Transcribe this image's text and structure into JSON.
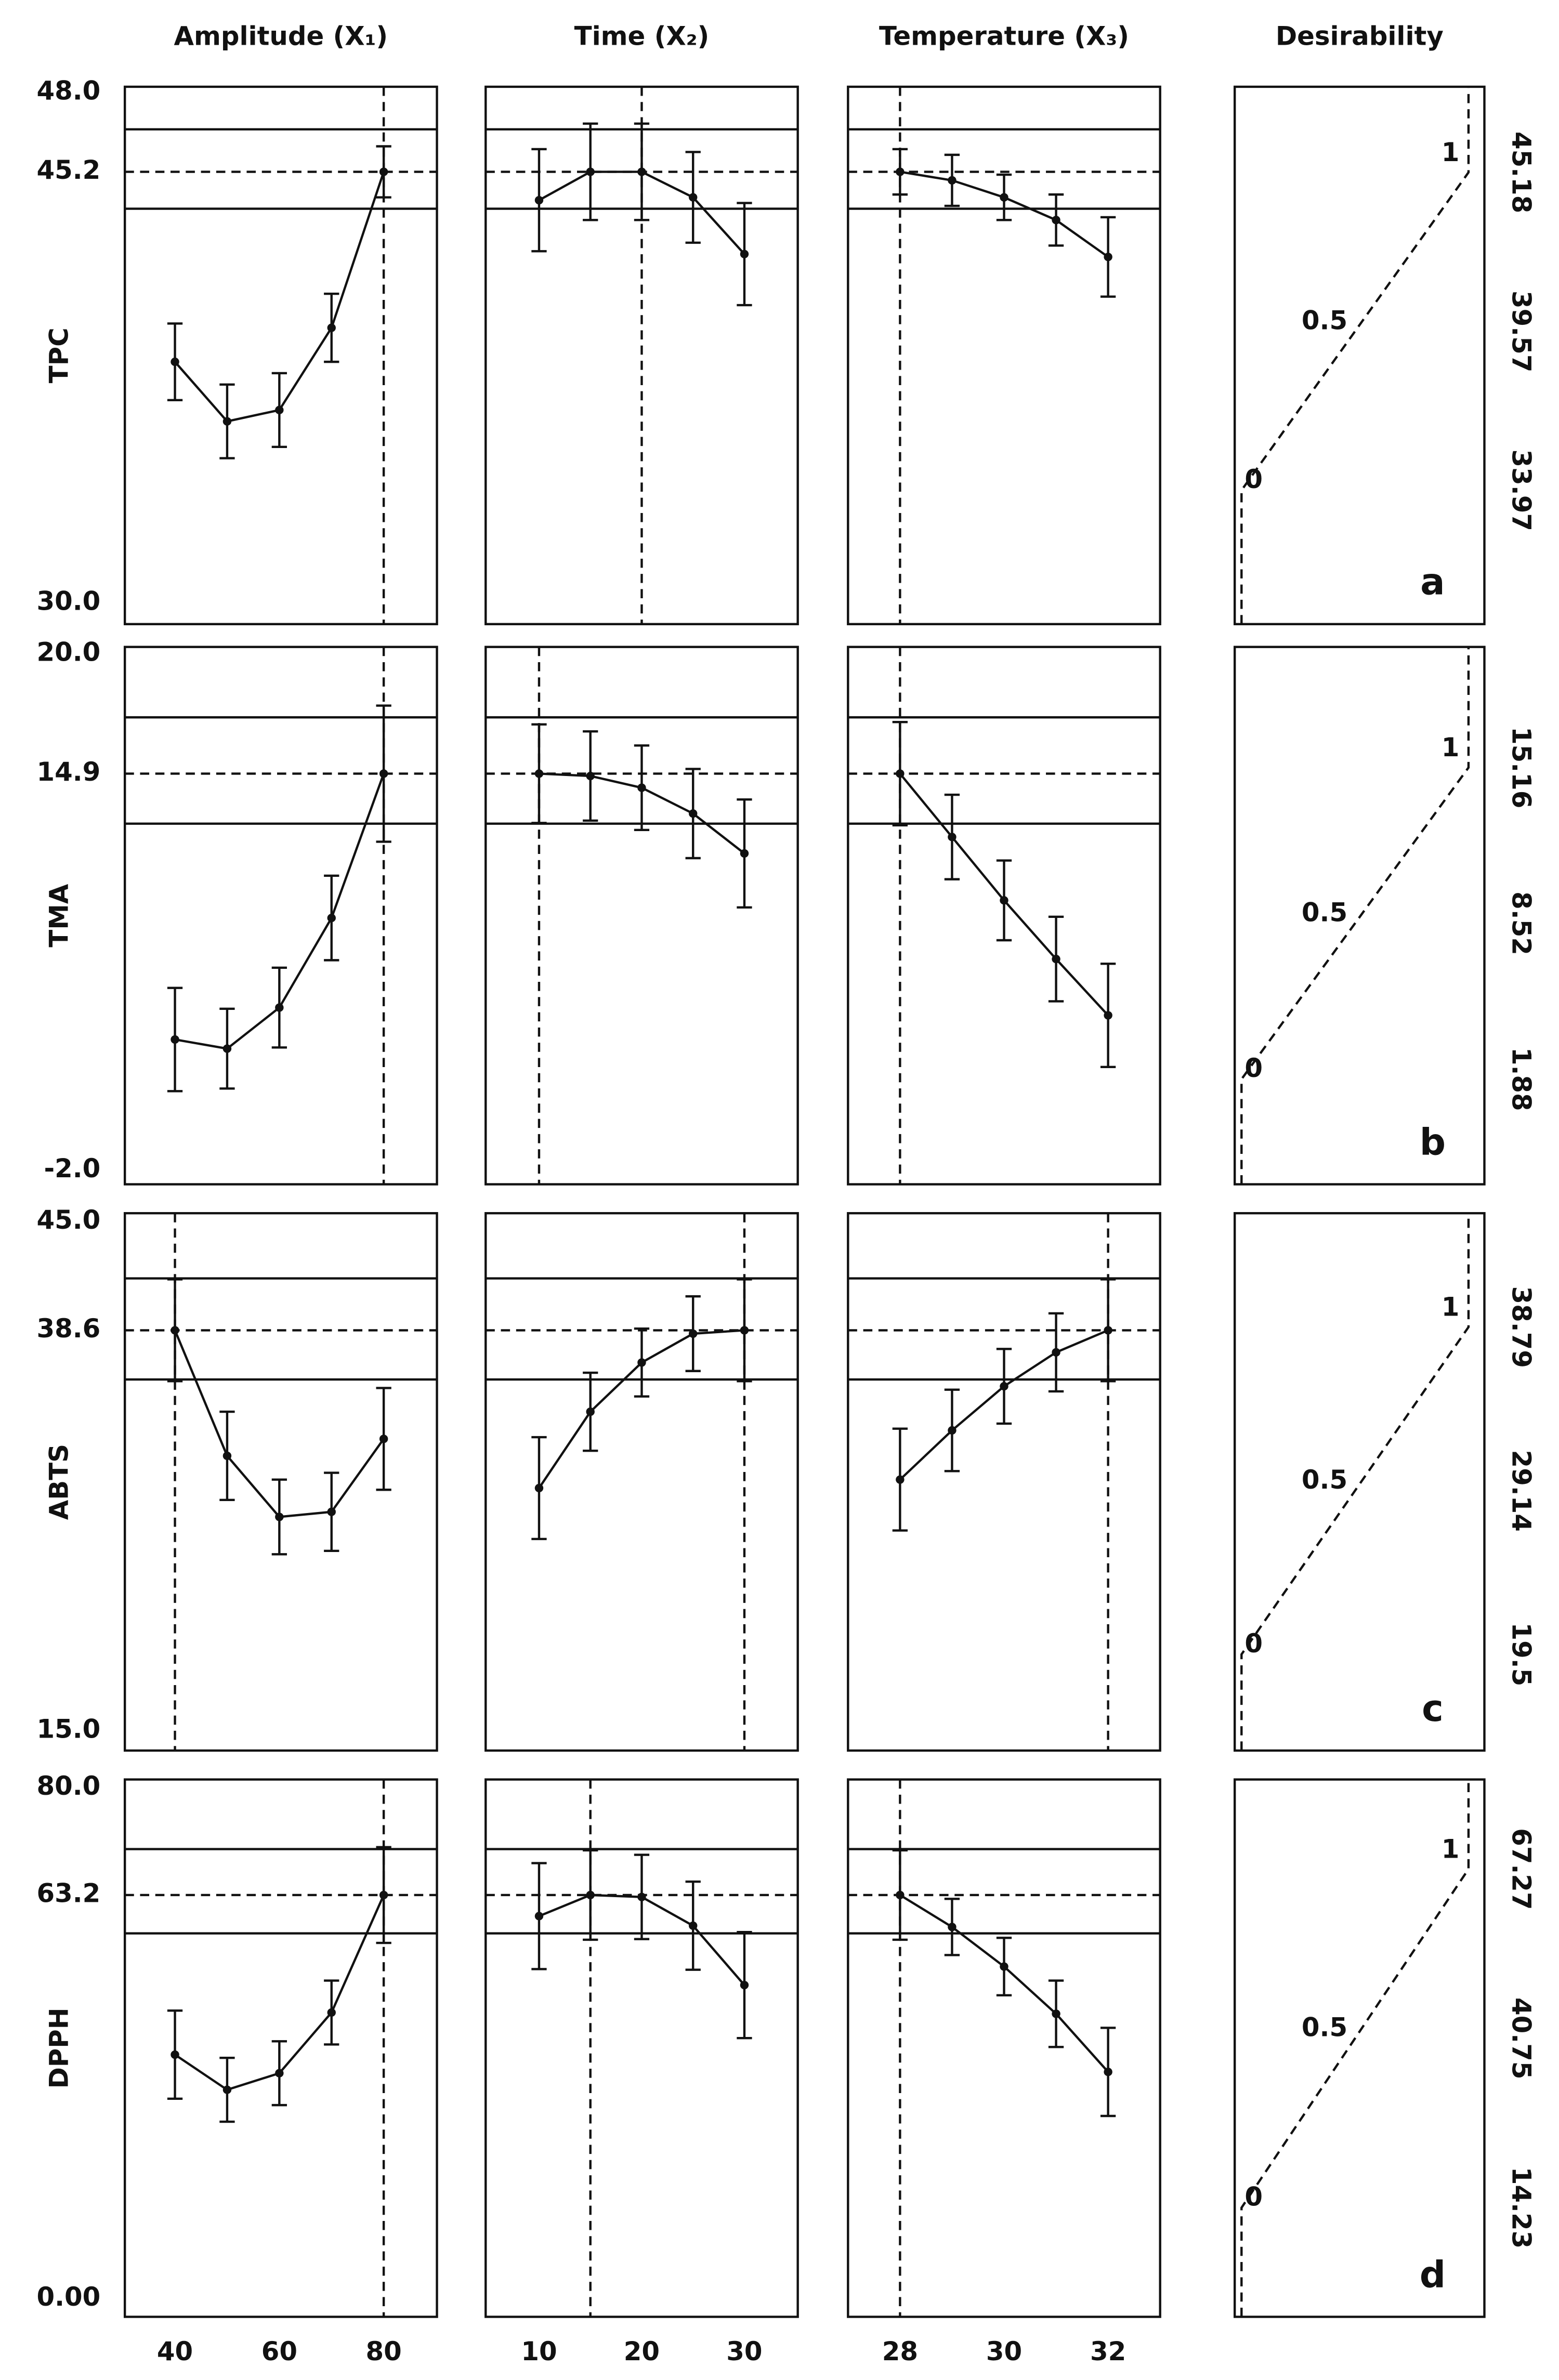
{
  "chart_data": {
    "type": "profile",
    "columns": [
      {
        "title": "Amplitude (X₁)",
        "x": [
          40,
          50,
          60,
          70,
          80
        ],
        "xlim": [
          30.4,
          90.2
        ],
        "xticks": [
          40,
          60,
          80
        ]
      },
      {
        "title": "Time (X₂)",
        "x": [
          10,
          15,
          20,
          25,
          30
        ],
        "xlim": [
          4.8,
          35.2
        ],
        "xticks": [
          10,
          20,
          30
        ]
      },
      {
        "title": "Temperature (X₃)",
        "x": [
          28,
          29,
          30,
          31,
          32
        ],
        "xlim": [
          27.0,
          33.0
        ],
        "xticks": [
          28,
          30,
          32
        ]
      }
    ],
    "desirability": {
      "title": "Desirability",
      "xlim": [
        -0.03,
        1.07
      ]
    },
    "rows": [
      {
        "ylabel": "TPC",
        "ylim": [
          29.25,
          48.2
        ],
        "yticks": [
          {
            "value": 30,
            "label": "30.0"
          },
          {
            "value": 45.2,
            "label": "45.2"
          },
          {
            "value": 48,
            "label": "48.0"
          }
        ],
        "optimum": 45.2,
        "bounds": [
          43.9,
          46.7
        ],
        "settings": [
          80,
          20,
          28
        ],
        "panels": [
          {
            "values": [
              38.5,
              36.4,
              36.8,
              39.7,
              45.2
            ],
            "errors": [
              1.35,
              1.3,
              1.3,
              1.2,
              0.9
            ]
          },
          {
            "values": [
              44.2,
              45.2,
              45.2,
              44.3,
              42.3
            ],
            "errors": [
              1.8,
              1.7,
              1.7,
              1.6,
              1.8
            ]
          },
          {
            "values": [
              45.2,
              44.9,
              44.3,
              43.5,
              42.2
            ],
            "errors": [
              0.8,
              0.9,
              0.8,
              0.9,
              1.4
            ]
          }
        ],
        "levels": [
          33.97,
          39.57,
          45.18
        ],
        "dticks": [
          0,
          0.5,
          1
        ],
        "letter": "a"
      },
      {
        "ylabel": "TMA",
        "ylim": [
          -2.6,
          20.3
        ],
        "yticks": [
          {
            "value": -2,
            "label": "-2.0"
          },
          {
            "value": 14.9,
            "label": "14.9"
          },
          {
            "value": 20,
            "label": "20.0"
          }
        ],
        "optimum": 14.9,
        "bounds": [
          12.77,
          17.3
        ],
        "settings": [
          80,
          10,
          28
        ],
        "panels": [
          {
            "values": [
              3.57,
              3.18,
              4.93,
              8.75,
              14.9
            ],
            "errors": [
              2.2,
              1.7,
              1.7,
              1.8,
              2.9
            ]
          },
          {
            "values": [
              14.9,
              14.8,
              14.3,
              13.2,
              11.5
            ],
            "errors": [
              2.1,
              1.9,
              1.8,
              1.9,
              2.3
            ]
          },
          {
            "values": [
              14.9,
              12.2,
              9.5,
              7.0,
              4.6
            ],
            "errors": [
              2.2,
              1.8,
              1.7,
              1.8,
              2.2
            ]
          }
        ],
        "levels": [
          1.88,
          8.52,
          15.16
        ],
        "dticks": [
          0,
          0.5,
          1
        ],
        "letter": "b"
      },
      {
        "ylabel": "ABTS",
        "ylim": [
          13.83,
          45.5
        ],
        "yticks": [
          {
            "value": 15,
            "label": "15.0"
          },
          {
            "value": 38.6,
            "label": "38.6"
          },
          {
            "value": 45,
            "label": "45.0"
          }
        ],
        "optimum": 38.6,
        "bounds": [
          35.7,
          41.66
        ],
        "settings": [
          40,
          30,
          32
        ],
        "panels": [
          {
            "values": [
              38.6,
              31.2,
              27.6,
              27.9,
              32.2
            ],
            "errors": [
              3.0,
              2.6,
              2.2,
              2.3,
              3.0
            ]
          },
          {
            "values": [
              29.3,
              33.8,
              36.7,
              38.4,
              38.6
            ],
            "errors": [
              3.0,
              2.3,
              2.0,
              2.2,
              3.0
            ]
          },
          {
            "values": [
              29.8,
              32.7,
              35.3,
              37.3,
              38.6
            ],
            "errors": [
              3.0,
              2.4,
              2.2,
              2.3,
              3.0
            ]
          }
        ],
        "levels": [
          19.5,
          29.14,
          38.79
        ],
        "dticks": [
          0,
          0.5,
          1
        ],
        "letter": "c"
      },
      {
        "ylabel": "DPPH",
        "ylim": [
          -2.86,
          81.3
        ],
        "yticks": [
          {
            "value": 0,
            "label": "0.00"
          },
          {
            "value": 63.2,
            "label": "63.2"
          },
          {
            "value": 80,
            "label": "80.0"
          }
        ],
        "optimum": 63.2,
        "bounds": [
          57.2,
          70.4
        ],
        "settings": [
          80,
          15,
          28
        ],
        "panels": [
          {
            "values": [
              38.2,
              32.7,
              35.3,
              44.8,
              63.2
            ],
            "errors": [
              6.9,
              5.0,
              5.0,
              5.0,
              7.5
            ]
          },
          {
            "values": [
              59.9,
              63.2,
              62.9,
              58.4,
              49.1
            ],
            "errors": [
              8.3,
              7.0,
              6.6,
              6.9,
              8.3
            ]
          },
          {
            "values": [
              63.2,
              58.2,
              52.0,
              44.6,
              35.5
            ],
            "errors": [
              7.0,
              4.4,
              4.5,
              5.2,
              6.9
            ]
          }
        ],
        "levels": [
          14.23,
          40.75,
          67.27
        ],
        "dticks": [
          0,
          0.5,
          1
        ],
        "letter": "d"
      }
    ]
  }
}
